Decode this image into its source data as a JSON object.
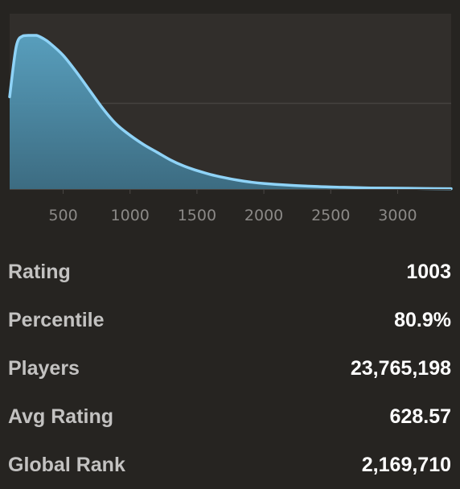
{
  "chart_data": {
    "type": "area",
    "title": "",
    "xlabel": "",
    "ylabel": "",
    "xlim": [
      100,
      3400
    ],
    "ylim": [
      0,
      1
    ],
    "x_ticks": [
      500,
      1000,
      1500,
      2000,
      2500,
      3000
    ],
    "y_gridlines": [
      0.5
    ],
    "grid": "horizontal",
    "legend": "none",
    "colors": {
      "line": "#8fd3f7",
      "fill_top": "#5aa4c4",
      "fill_bottom": "#3d6f86",
      "plot_bg": "#312e2b",
      "page_bg": "#262421"
    },
    "series": [
      {
        "x": [
          100,
          150,
          200,
          250,
          300,
          350,
          400,
          500,
          600,
          700,
          800,
          900,
          1000,
          1100,
          1200,
          1300,
          1400,
          1500,
          1600,
          1700,
          1800,
          1900,
          2000,
          2200,
          2400,
          2600,
          2800,
          3000,
          3200,
          3400
        ],
        "y": [
          0.6,
          0.93,
          0.997,
          1.0,
          1.0,
          0.98,
          0.95,
          0.87,
          0.76,
          0.64,
          0.52,
          0.42,
          0.35,
          0.29,
          0.24,
          0.19,
          0.15,
          0.12,
          0.095,
          0.075,
          0.058,
          0.045,
          0.036,
          0.024,
          0.016,
          0.011,
          0.007,
          0.005,
          0.003,
          0.002
        ]
      }
    ]
  },
  "stats": [
    {
      "label": "Rating",
      "value": "1003"
    },
    {
      "label": "Percentile",
      "value": "80.9%"
    },
    {
      "label": "Players",
      "value": "23,765,198"
    },
    {
      "label": "Avg Rating",
      "value": "628.57"
    },
    {
      "label": "Global Rank",
      "value": "2,169,710"
    }
  ]
}
